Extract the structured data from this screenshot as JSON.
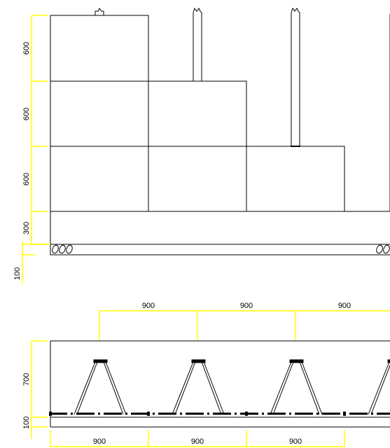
{
  "elevation": {
    "course_heights": [
      "600",
      "600",
      "600"
    ],
    "base_height": "300",
    "footing_height": "100"
  },
  "section": {
    "top_spacings": [
      "900",
      "900",
      "900"
    ],
    "bottom_spacings": [
      "900",
      "900",
      "900"
    ],
    "height": "700",
    "base_height": "100"
  },
  "colors": {
    "line": "#000000",
    "dimension": "#ffff00",
    "background": "#ffffff"
  }
}
